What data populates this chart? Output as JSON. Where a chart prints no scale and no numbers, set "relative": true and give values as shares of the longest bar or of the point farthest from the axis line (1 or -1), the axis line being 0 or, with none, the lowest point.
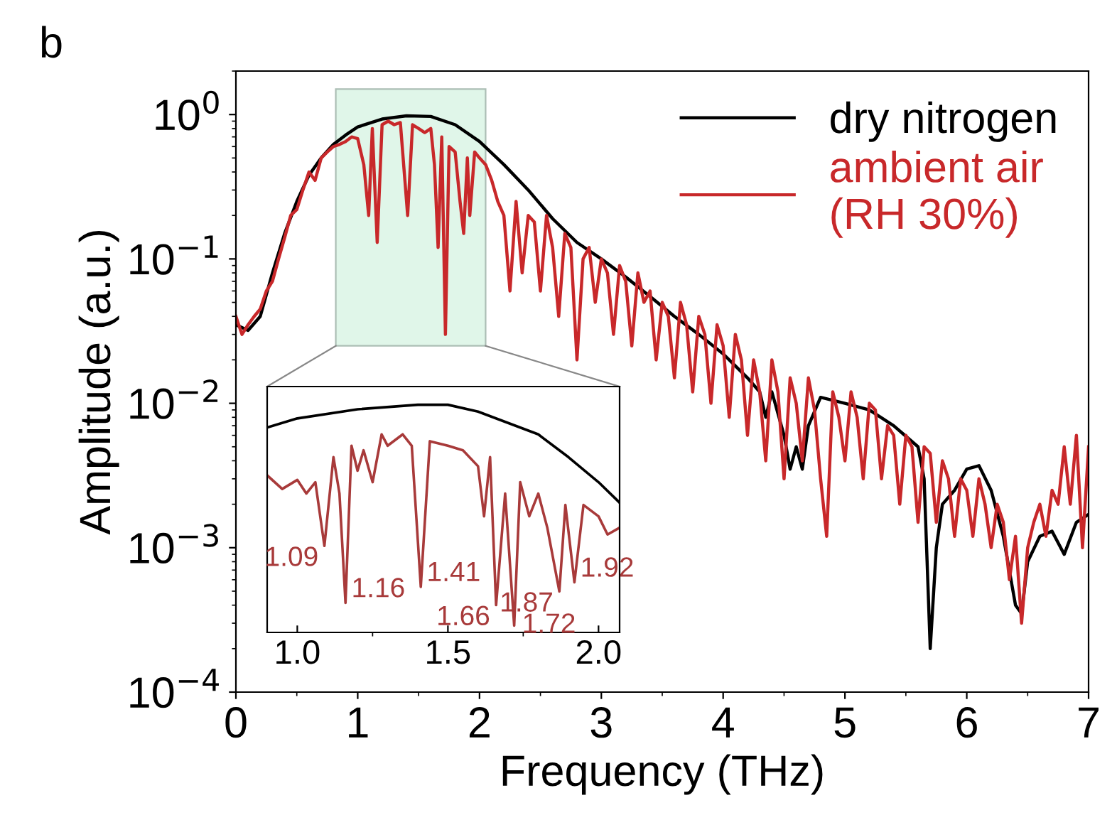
{
  "chart_data": [
    {
      "type": "line",
      "title": "b",
      "xlabel": "Frequency (THz)",
      "ylabel": "Amplitude (a.u.)",
      "log": "y",
      "legend": "top right",
      "grid": false,
      "xlim": [
        0,
        7
      ],
      "xticks": [
        0,
        1,
        2,
        3,
        4,
        5,
        6,
        7
      ],
      "ylim": [
        0.0001,
        2
      ],
      "yticks": [
        {
          "value": 0.0001,
          "label": "10$^{−4}$"
        },
        {
          "value": 0.001,
          "label": "10$^{−3}$"
        },
        {
          "value": 0.01,
          "label": "10$^{−2}$"
        },
        {
          "value": 0.1,
          "label": "10$^{−1}$"
        },
        {
          "value": 1,
          "label": "10$^{0}$"
        }
      ],
      "series": [
        {
          "name": "dry nitrogen",
          "color": "#000000",
          "x": [
            0,
            0.1,
            0.2,
            0.3,
            0.4,
            0.5,
            0.6,
            0.7,
            0.8,
            0.9,
            1.0,
            1.2,
            1.4,
            1.6,
            1.8,
            2.0,
            2.2,
            2.4,
            2.6,
            2.8,
            3.0,
            3.2,
            3.4,
            3.6,
            3.8,
            4.0,
            4.2,
            4.3,
            4.35,
            4.4,
            4.5,
            4.55,
            4.6,
            4.65,
            4.7,
            4.8,
            5.0,
            5.2,
            5.4,
            5.6,
            5.65,
            5.7,
            5.75,
            5.8,
            5.9,
            6.0,
            6.1,
            6.2,
            6.3,
            6.4,
            6.45,
            6.5,
            6.6,
            6.7,
            6.8,
            6.9,
            7.0
          ],
          "values": [
            0.035,
            0.032,
            0.04,
            0.08,
            0.15,
            0.25,
            0.38,
            0.5,
            0.62,
            0.72,
            0.82,
            0.93,
            0.98,
            0.97,
            0.85,
            0.65,
            0.45,
            0.3,
            0.19,
            0.13,
            0.1,
            0.075,
            0.055,
            0.04,
            0.03,
            0.022,
            0.015,
            0.012,
            0.008,
            0.012,
            0.006,
            0.0035,
            0.005,
            0.0035,
            0.007,
            0.011,
            0.01,
            0.009,
            0.007,
            0.005,
            0.003,
            0.0002,
            0.001,
            0.002,
            0.0025,
            0.0035,
            0.0037,
            0.0025,
            0.0012,
            0.0004,
            0.00035,
            0.0008,
            0.0012,
            0.0013,
            0.0009,
            0.0015,
            0.0017
          ]
        },
        {
          "name": "ambient air\n(RH 30%)",
          "color": "#c8282a",
          "x": [
            0,
            0.05,
            0.1,
            0.15,
            0.2,
            0.25,
            0.3,
            0.35,
            0.4,
            0.45,
            0.5,
            0.55,
            0.6,
            0.65,
            0.7,
            0.75,
            0.8,
            0.85,
            0.9,
            0.95,
            1.0,
            1.05,
            1.09,
            1.12,
            1.16,
            1.2,
            1.25,
            1.3,
            1.35,
            1.41,
            1.45,
            1.5,
            1.55,
            1.6,
            1.63,
            1.66,
            1.69,
            1.72,
            1.75,
            1.8,
            1.84,
            1.87,
            1.9,
            1.92,
            1.96,
            2.0,
            2.05,
            2.1,
            2.15,
            2.2,
            2.25,
            2.3,
            2.35,
            2.4,
            2.45,
            2.5,
            2.55,
            2.6,
            2.65,
            2.7,
            2.75,
            2.8,
            2.85,
            2.9,
            2.95,
            3.0,
            3.05,
            3.1,
            3.15,
            3.2,
            3.25,
            3.3,
            3.35,
            3.4,
            3.45,
            3.5,
            3.55,
            3.6,
            3.65,
            3.7,
            3.75,
            3.8,
            3.85,
            3.9,
            3.95,
            4.0,
            4.05,
            4.1,
            4.15,
            4.2,
            4.25,
            4.3,
            4.35,
            4.4,
            4.45,
            4.5,
            4.55,
            4.6,
            4.65,
            4.7,
            4.75,
            4.8,
            4.85,
            4.9,
            4.95,
            5.0,
            5.05,
            5.1,
            5.15,
            5.2,
            5.25,
            5.3,
            5.35,
            5.4,
            5.45,
            5.5,
            5.55,
            5.6,
            5.65,
            5.7,
            5.75,
            5.8,
            5.85,
            5.9,
            5.95,
            6.0,
            6.05,
            6.1,
            6.15,
            6.2,
            6.25,
            6.3,
            6.35,
            6.4,
            6.45,
            6.5,
            6.55,
            6.6,
            6.65,
            6.7,
            6.75,
            6.8,
            6.85,
            6.9,
            6.95,
            7.0
          ],
          "values": [
            0.04,
            0.03,
            0.035,
            0.04,
            0.045,
            0.06,
            0.07,
            0.1,
            0.14,
            0.2,
            0.22,
            0.3,
            0.4,
            0.35,
            0.5,
            0.55,
            0.6,
            0.62,
            0.65,
            0.7,
            0.68,
            0.45,
            0.2,
            0.8,
            0.13,
            0.85,
            0.9,
            0.85,
            0.88,
            0.2,
            0.85,
            0.8,
            0.75,
            0.8,
            0.45,
            0.12,
            0.7,
            0.03,
            0.6,
            0.55,
            0.25,
            0.15,
            0.5,
            0.2,
            0.55,
            0.5,
            0.45,
            0.35,
            0.25,
            0.2,
            0.06,
            0.25,
            0.08,
            0.2,
            0.18,
            0.06,
            0.2,
            0.12,
            0.04,
            0.15,
            0.12,
            0.02,
            0.1,
            0.12,
            0.05,
            0.1,
            0.08,
            0.03,
            0.09,
            0.07,
            0.025,
            0.08,
            0.05,
            0.06,
            0.02,
            0.05,
            0.04,
            0.015,
            0.05,
            0.035,
            0.012,
            0.04,
            0.03,
            0.01,
            0.035,
            0.025,
            0.008,
            0.03,
            0.02,
            0.006,
            0.02,
            0.012,
            0.004,
            0.02,
            0.012,
            0.003,
            0.015,
            0.01,
            0.004,
            0.015,
            0.009,
            0.003,
            0.0012,
            0.012,
            0.008,
            0.004,
            0.012,
            0.008,
            0.003,
            0.01,
            0.009,
            0.003,
            0.007,
            0.006,
            0.002,
            0.006,
            0.005,
            0.0015,
            0.005,
            0.0045,
            0.0015,
            0.004,
            0.003,
            0.0012,
            0.003,
            0.0025,
            0.0012,
            0.003,
            0.002,
            0.001,
            0.002,
            0.0015,
            0.0006,
            0.0012,
            0.0003,
            0.001,
            0.0015,
            0.002,
            0.0012,
            0.0025,
            0.002,
            0.005,
            0.002,
            0.006,
            0.001,
            0.005
          ]
        }
      ]
    },
    {
      "type": "line",
      "relative": true,
      "tick_labels": "x",
      "grid": false,
      "xlim": [
        0.9,
        2.07
      ],
      "xticks": [
        {
          "value": 1,
          "label": "1.0"
        },
        1.5,
        {
          "value": 2,
          "label": "2.0"
        }
      ],
      "series": [
        {
          "color": "#000000",
          "x": [
            0.9,
            1.0,
            1.2,
            1.4,
            1.5,
            1.6,
            1.8,
            1.9,
            2.0,
            2.07
          ],
          "values": [
            0.9,
            0.94,
            0.98,
            1,
            1,
            0.97,
            0.87,
            0.77,
            0.66,
            0.57
          ]
        },
        {
          "color": "#a83a3a",
          "x": [
            0.9,
            0.95,
            1.0,
            1.03,
            1.06,
            1.09,
            1.12,
            1.14,
            1.16,
            1.18,
            1.2,
            1.22,
            1.25,
            1.28,
            1.3,
            1.35,
            1.38,
            1.41,
            1.44,
            1.5,
            1.55,
            1.6,
            1.62,
            1.64,
            1.66,
            1.69,
            1.72,
            1.74,
            1.77,
            1.8,
            1.83,
            1.87,
            1.89,
            1.92,
            1.95,
            2.0,
            2.03,
            2.07
          ],
          "values": [
            0.69,
            0.63,
            0.67,
            0.61,
            0.66,
            0.38,
            0.77,
            0.61,
            0.13,
            0.82,
            0.71,
            0.8,
            0.66,
            0.87,
            0.82,
            0.87,
            0.82,
            0.2,
            0.84,
            0.82,
            0.8,
            0.73,
            0.51,
            0.77,
            0.12,
            0.61,
            0.03,
            0.66,
            0.51,
            0.61,
            0.46,
            0.18,
            0.56,
            0.22,
            0.56,
            0.51,
            0.43,
            0.46
          ]
        }
      ],
      "annotations": [
        {
          "text": "1.09",
          "x": 1.09,
          "y": 0.38
        },
        {
          "text": "1.16",
          "x": 1.16,
          "y": 0.13
        },
        {
          "text": "1.41",
          "x": 1.41,
          "y": 0.2
        },
        {
          "text": "1.66",
          "x": 1.66,
          "y": 0.12
        },
        {
          "text": "1.72",
          "x": 1.72,
          "y": 0.03
        },
        {
          "text": "1.87",
          "x": 1.87,
          "y": 0.18
        },
        {
          "text": "1.92",
          "x": 1.92,
          "y": 0.22
        }
      ]
    }
  ]
}
